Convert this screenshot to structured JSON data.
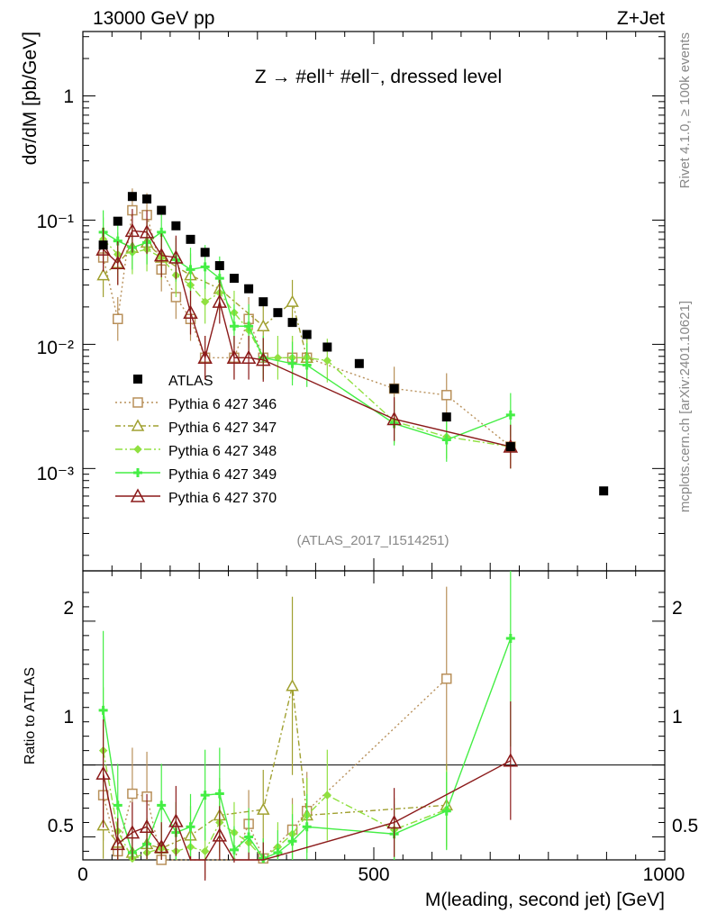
{
  "header": {
    "left": "13000 GeV pp",
    "right": "Z+Jet"
  },
  "plot_title": "Z → #ell⁺ #ell⁻, dressed level",
  "side_text": {
    "rivet": "Rivet 4.1.0, ≥ 100k events",
    "mcplots": "mcplots.cern.ch [arXiv:2401.10621]"
  },
  "analysis_label": "(ATLAS_2017_I1514251)",
  "chart_data": {
    "type": "scatter",
    "title": "Z → #ell⁺ #ell⁻, dressed level",
    "xlabel": "M(leading, second jet) [GeV]",
    "ylabel": "dσ/dM [pb/GeV]",
    "ratio_ylabel": "Ratio to ATLAS",
    "xlim": [
      0,
      1000
    ],
    "ylim": [
      0.00015,
      3.3
    ],
    "yscale": "log",
    "ratio_ylim": [
      0.34,
      2.35
    ],
    "x_ticks": [
      0,
      500,
      1000
    ],
    "x_tick_labels": [
      "0",
      "500",
      "1000"
    ],
    "y_tick_labels": [
      "10⁻³",
      "10⁻²",
      "10⁻¹",
      "1"
    ],
    "ratio_tick_labels": [
      "0.5",
      "1",
      "2"
    ],
    "legend": [
      "ATLAS",
      "Pythia 6 427 346",
      "Pythia 6 427 347",
      "Pythia 6 427 348",
      "Pythia 6 427 349",
      "Pythia 6 427 370"
    ],
    "x": [
      35,
      60,
      85,
      110,
      135,
      160,
      185,
      210,
      235,
      260,
      285,
      310,
      335,
      360,
      385,
      420,
      475,
      535,
      625,
      735,
      895
    ],
    "series": [
      {
        "name": "ATLAS",
        "color": "#000000",
        "values": [
          0.063,
          0.098,
          0.155,
          0.148,
          0.12,
          0.09,
          0.07,
          0.055,
          0.043,
          0.034,
          0.028,
          0.022,
          0.018,
          0.015,
          0.012,
          0.0095,
          0.007,
          0.0044,
          0.0026,
          0.0015,
          0.00066
        ]
      },
      {
        "name": "Pythia 6 427 346",
        "color": "#b8905a",
        "values": [
          0.05,
          0.016,
          0.12,
          0.11,
          0.04,
          0.024,
          0.016,
          0.0078,
          null,
          0.0078,
          0.016,
          0.0078,
          null,
          0.0078,
          0.0078,
          null,
          null,
          0.0044,
          0.0039,
          0.0015,
          null
        ]
      },
      {
        "name": "Pythia 6 427 347",
        "color": "#a0a030",
        "values": [
          0.036,
          0.045,
          0.06,
          0.066,
          0.05,
          null,
          0.036,
          null,
          0.028,
          null,
          null,
          0.014,
          null,
          0.022,
          0.0078,
          null,
          null,
          null,
          null,
          null,
          null
        ]
      },
      {
        "name": "Pythia 6 427 348",
        "color": "#90e040",
        "values": [
          0.07,
          0.053,
          0.055,
          0.058,
          0.05,
          0.036,
          0.03,
          0.022,
          0.026,
          0.018,
          0.013,
          0.0078,
          0.0078,
          0.0078,
          0.0078,
          0.0074,
          null,
          0.0024,
          0.0018,
          0.0015,
          null
        ]
      },
      {
        "name": "Pythia 6 427 349",
        "color": "#44ee44",
        "values": [
          0.08,
          0.068,
          0.06,
          0.066,
          0.08,
          0.048,
          0.04,
          0.042,
          0.034,
          0.014,
          0.014,
          0.0078,
          null,
          0.007,
          0.0068,
          null,
          null,
          0.0023,
          0.0017,
          0.0027,
          null
        ]
      },
      {
        "name": "Pythia 6 427 370",
        "color": "#8b1a1a",
        "values": [
          0.058,
          0.045,
          0.082,
          0.08,
          0.052,
          0.05,
          0.018,
          0.0078,
          0.022,
          0.0078,
          0.0078,
          0.0075,
          null,
          null,
          null,
          null,
          null,
          0.0025,
          null,
          0.0015,
          null
        ]
      }
    ],
    "ratio_series": [
      {
        "name": "Pythia 6 427 346",
        "values": [
          0.79,
          0.4,
          0.8,
          0.78,
          0.34,
          0.27,
          0.24,
          0.15,
          null,
          0.23,
          0.59,
          0.35,
          null,
          0.55,
          0.68,
          null,
          null,
          null,
          1.6,
          null,
          null
        ]
      },
      {
        "name": "Pythia 6 427 347",
        "values": [
          0.58,
          0.46,
          0.39,
          0.45,
          0.42,
          null,
          0.51,
          null,
          0.65,
          null,
          null,
          0.69,
          null,
          1.55,
          0.65,
          null,
          null,
          null,
          0.72,
          null,
          null
        ]
      },
      {
        "name": "Pythia 6 427 348",
        "values": [
          1.1,
          0.54,
          0.35,
          0.39,
          0.42,
          0.4,
          0.43,
          0.4,
          0.6,
          0.53,
          0.46,
          0.35,
          0.43,
          0.52,
          0.65,
          0.79,
          null,
          0.55,
          0.69,
          null,
          null
        ]
      },
      {
        "name": "Pythia 6 427 349",
        "values": [
          1.38,
          0.72,
          0.39,
          0.45,
          0.72,
          0.53,
          0.57,
          0.79,
          0.8,
          0.41,
          0.5,
          0.35,
          0.39,
          0.47,
          0.57,
          null,
          null,
          0.52,
          0.68,
          1.88,
          null
        ]
      },
      {
        "name": "Pythia 6 427 370",
        "values": [
          0.94,
          0.45,
          0.53,
          0.57,
          0.43,
          0.61,
          0.26,
          0.14,
          0.51,
          0.23,
          0.28,
          0.33,
          null,
          null,
          null,
          null,
          null,
          0.6,
          null,
          1.03,
          null
        ]
      }
    ]
  }
}
